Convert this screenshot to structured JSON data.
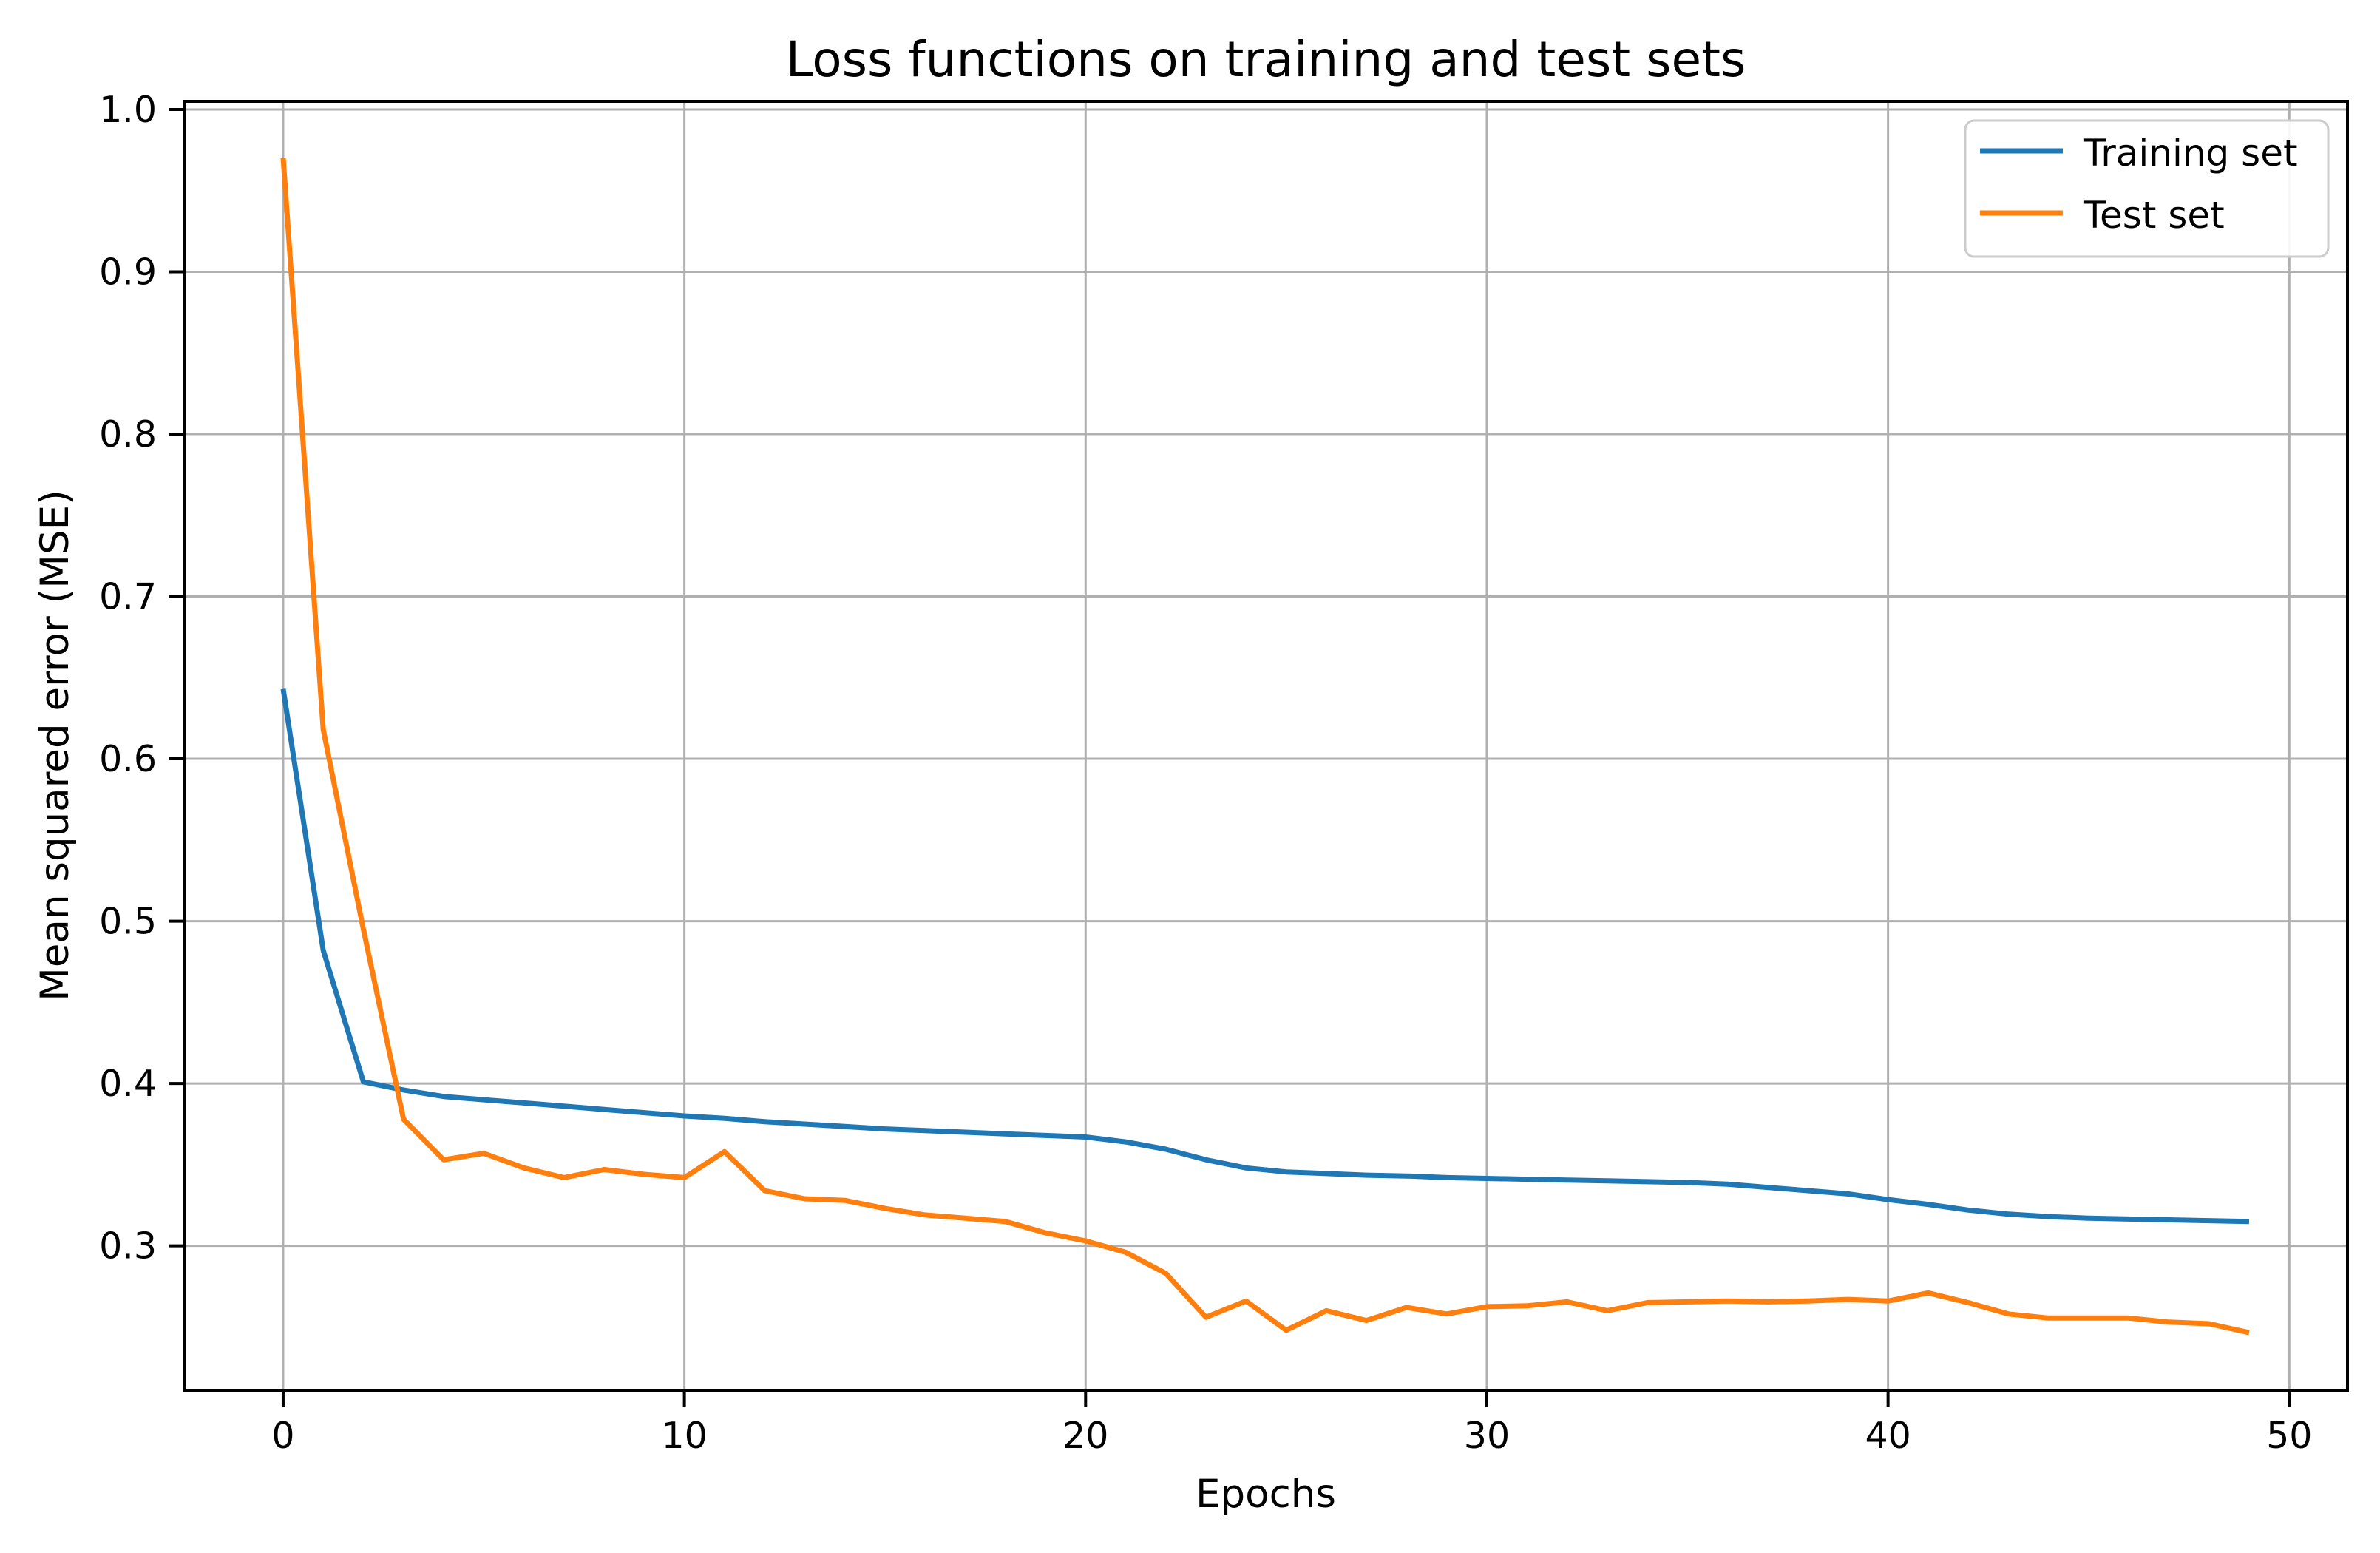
{
  "chart_data": {
    "type": "line",
    "title": "Loss functions on training and test sets",
    "xlabel": "Epochs",
    "ylabel": "Mean squared error (MSE)",
    "x": [
      0,
      1,
      2,
      3,
      4,
      5,
      6,
      7,
      8,
      9,
      10,
      11,
      12,
      13,
      14,
      15,
      16,
      17,
      18,
      19,
      20,
      21,
      22,
      23,
      24,
      25,
      26,
      27,
      28,
      29,
      30,
      31,
      32,
      33,
      34,
      35,
      36,
      37,
      38,
      39,
      40,
      41,
      42,
      43,
      44,
      45,
      46,
      47,
      48,
      49
    ],
    "series": [
      {
        "name": "Training set",
        "color": "#1f77b4",
        "values": [
          0.643,
          0.482,
          0.401,
          0.396,
          0.392,
          0.39,
          0.388,
          0.386,
          0.384,
          0.382,
          0.38,
          0.3785,
          0.3765,
          0.375,
          0.3735,
          0.372,
          0.371,
          0.37,
          0.369,
          0.368,
          0.367,
          0.364,
          0.3595,
          0.353,
          0.348,
          0.3455,
          0.3445,
          0.3435,
          0.343,
          0.342,
          0.3415,
          0.341,
          0.3405,
          0.34,
          0.3395,
          0.339,
          0.338,
          0.336,
          0.334,
          0.332,
          0.3285,
          0.3255,
          0.322,
          0.3195,
          0.318,
          0.317,
          0.3165,
          0.316,
          0.3155,
          0.315
        ]
      },
      {
        "name": "Test set",
        "color": "#ff7f0e",
        "values": [
          0.97,
          0.618,
          0.495,
          0.378,
          0.353,
          0.357,
          0.348,
          0.342,
          0.347,
          0.344,
          0.342,
          0.358,
          0.334,
          0.329,
          0.328,
          0.323,
          0.319,
          0.317,
          0.315,
          0.308,
          0.303,
          0.296,
          0.283,
          0.256,
          0.266,
          0.248,
          0.26,
          0.254,
          0.262,
          0.258,
          0.2625,
          0.263,
          0.2655,
          0.26,
          0.265,
          0.2655,
          0.266,
          0.2655,
          0.266,
          0.267,
          0.266,
          0.271,
          0.265,
          0.258,
          0.2555,
          0.2555,
          0.2555,
          0.253,
          0.252,
          0.2465
        ]
      }
    ],
    "xticks": [
      0,
      10,
      20,
      30,
      40,
      50
    ],
    "yticks": [
      0.3,
      0.4,
      0.5,
      0.6,
      0.7,
      0.8,
      0.9,
      1.0
    ],
    "xlim": [
      -2.45,
      51.45
    ],
    "ylim": [
      0.211,
      1.005
    ],
    "grid": true,
    "grid_color": "#b0b0b0",
    "spine_color": "#000000",
    "background_color": "#ffffff",
    "legend": {
      "position": "upper right",
      "entries": [
        "Training set",
        "Test set"
      ]
    }
  }
}
